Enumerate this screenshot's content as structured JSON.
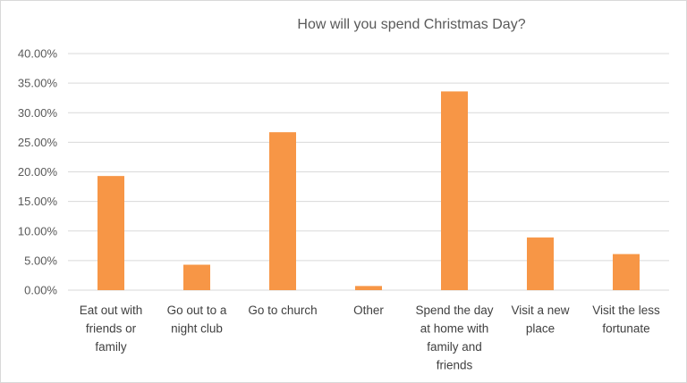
{
  "chart_data": {
    "type": "bar",
    "title": "How will you spend Christmas Day?",
    "xlabel": "",
    "ylabel": "",
    "categories": [
      "Eat out with friends or family",
      "Go out to a night club",
      "Go to church",
      "Other",
      "Spend the day at home with family and friends",
      "Visit a new place",
      "Visit the less fortunate"
    ],
    "category_lines": [
      [
        "Eat out with",
        "friends or",
        "family"
      ],
      [
        "Go out to a",
        "night club"
      ],
      [
        "Go to church"
      ],
      [
        "Other"
      ],
      [
        "Spend the day",
        "at home with",
        "family and",
        "friends"
      ],
      [
        "Visit a new",
        "place"
      ],
      [
        "Visit the less",
        "fortunate"
      ]
    ],
    "values": [
      0.193,
      0.043,
      0.267,
      0.007,
      0.336,
      0.089,
      0.061
    ],
    "ylim": [
      0,
      0.4
    ],
    "yticks": [
      0,
      0.05,
      0.1,
      0.15,
      0.2,
      0.25,
      0.3,
      0.35,
      0.4
    ],
    "ytick_labels": [
      "0.00%",
      "5.00%",
      "10.00%",
      "15.00%",
      "20.00%",
      "25.00%",
      "30.00%",
      "35.00%",
      "40.00%"
    ],
    "grid": true,
    "legend": "none",
    "bar_color": "#f79646",
    "grid_color": "#d9d9d9"
  }
}
